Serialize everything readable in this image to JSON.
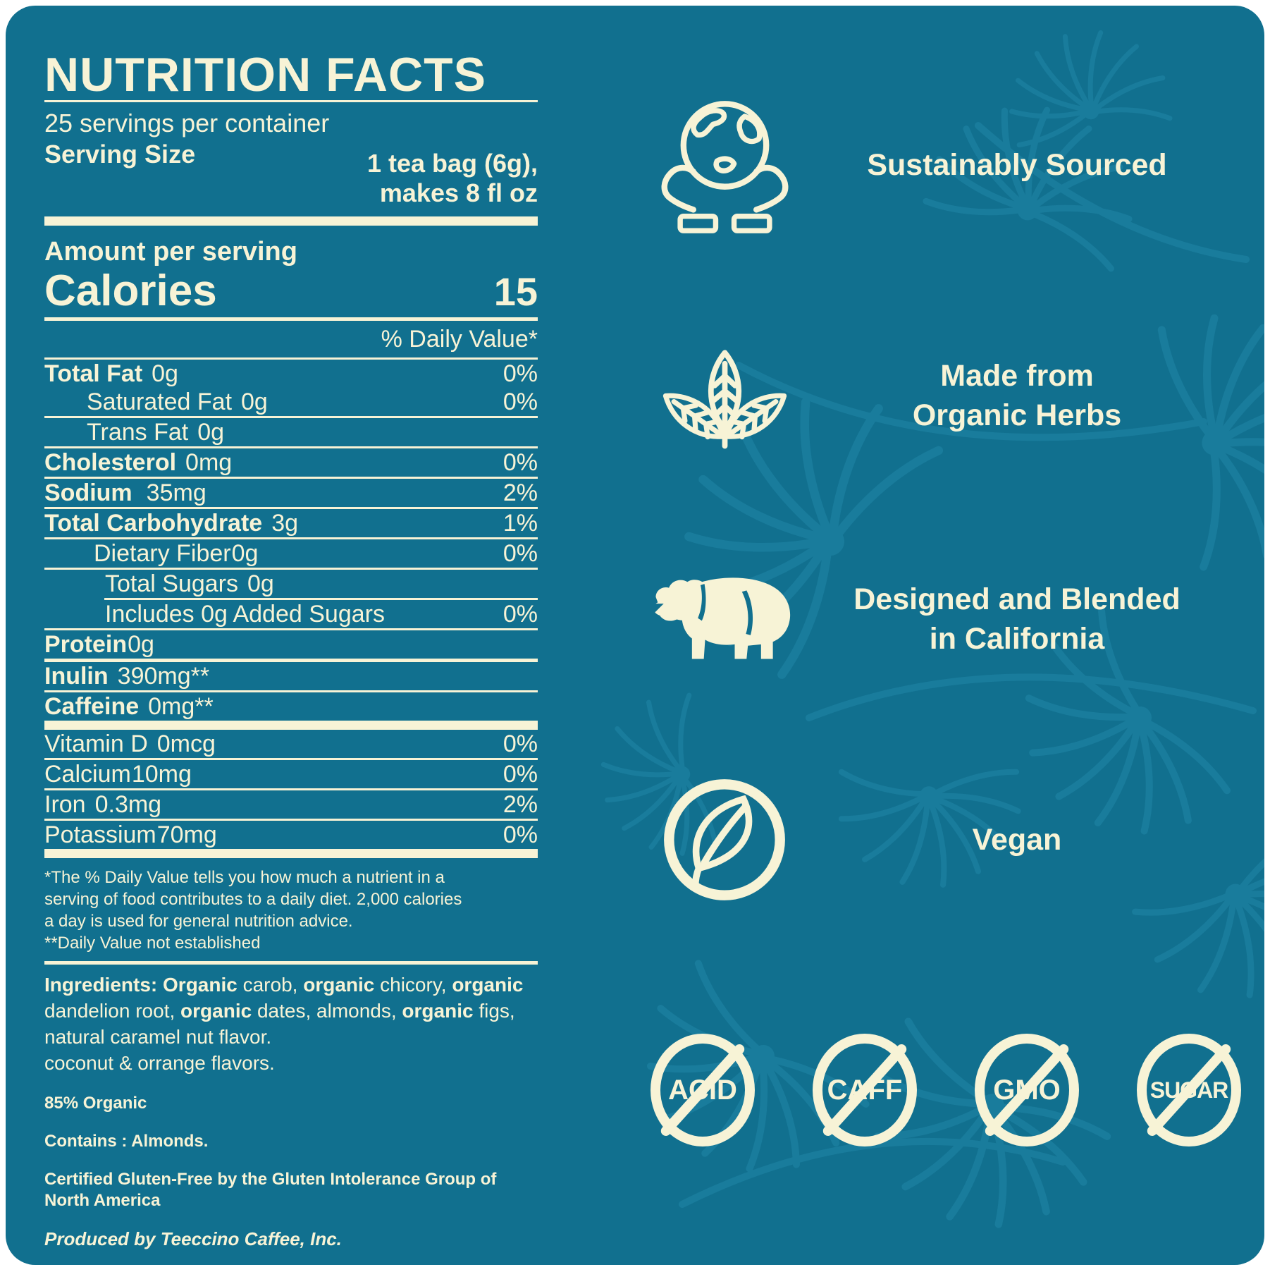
{
  "colors": {
    "page_background": "#ffffff",
    "card_background": "#11708f",
    "ink_cream": "#f7f3d6",
    "pattern_teal": "#2187a8"
  },
  "label": {
    "title": "NUTRITION FACTS",
    "servings_per_container": "25 servings per container",
    "serving_size_label": "Serving Size",
    "serving_size_value": "1 tea bag (6g),\nmakes 8 fl oz",
    "amount_per_serving": "Amount per serving",
    "calories_label": "Calories",
    "calories_value": "15",
    "daily_value_header": "% Daily Value*",
    "rows": [
      {
        "name": "Total Fat",
        "amount": "0g",
        "dv": "0%"
      },
      {
        "name": "Saturated Fat",
        "amount": "0g",
        "dv": "0%"
      },
      {
        "name": "Trans Fat",
        "amount": "0g",
        "dv": ""
      },
      {
        "name": "Cholesterol",
        "amount": "0mg",
        "dv": "0%"
      },
      {
        "name": "Sodium",
        "amount": "35mg",
        "dv": "2%"
      },
      {
        "name": "Total Carbohydrate",
        "amount": "3g",
        "dv": "1%"
      },
      {
        "name": "Dietary Fiber",
        "amount": "0g",
        "dv": "0%"
      },
      {
        "name": "Total Sugars",
        "amount": "0g",
        "dv": ""
      },
      {
        "name": "Includes 0g Added Sugars",
        "amount": "",
        "dv": "0%"
      },
      {
        "name": "Protein",
        "amount": "0g",
        "dv": ""
      },
      {
        "name": "Inulin",
        "amount": "390mg**",
        "dv": ""
      },
      {
        "name": "Caffeine",
        "amount": "0mg**",
        "dv": ""
      },
      {
        "name": "Vitamin D",
        "amount": "0mcg",
        "dv": "0%"
      },
      {
        "name": "Calcium",
        "amount": "10mg",
        "dv": "0%"
      },
      {
        "name": "Iron",
        "amount": "0.3mg",
        "dv": "2%"
      },
      {
        "name": "Potassium",
        "amount": "70mg",
        "dv": "0%"
      }
    ],
    "footnote": "*The % Daily Value tells you how much a nutrient in a\nserving of food contributes to a daily diet. 2,000 calories\na day is used for general nutrition advice.\n**Daily Value not established",
    "ingredients_segments": [
      {
        "text": "Ingredients: ",
        "bold": true
      },
      {
        "text": "Organic",
        "bold": true
      },
      {
        "text": " carob, ",
        "bold": false
      },
      {
        "text": "organic",
        "bold": true
      },
      {
        "text": " chicory, ",
        "bold": false
      },
      {
        "text": "organic",
        "bold": true
      },
      {
        "text": "\ndandelion root, ",
        "bold": false
      },
      {
        "text": "organic",
        "bold": true
      },
      {
        "text": " dates, almonds, ",
        "bold": false
      },
      {
        "text": "organic",
        "bold": true
      },
      {
        "text": " figs,\nnatural caramel nut flavor.\ncoconut & orrange flavors.",
        "bold": false
      }
    ],
    "organic_claim": "85% Organic",
    "contains_statement": "Contains : Almonds.",
    "gluten_free_statement": "Certified Gluten-Free by the Gluten Intolerance Group of\nNorth America",
    "producer_statement": "Produced by Teeccino Caffee, Inc."
  },
  "features": [
    {
      "icon": "globe-hands-icon",
      "text": "Sustainably Sourced"
    },
    {
      "icon": "herb-leaves-icon",
      "text": "Made from\nOrganic Herbs"
    },
    {
      "icon": "bear-icon",
      "text": "Designed and Blended\nin California"
    },
    {
      "icon": "leaf-circle-icon",
      "text": "Vegan"
    }
  ],
  "badges": [
    {
      "text": "ACID"
    },
    {
      "text": "CAFF"
    },
    {
      "text": "GMO"
    },
    {
      "text": "SUGAR"
    }
  ]
}
